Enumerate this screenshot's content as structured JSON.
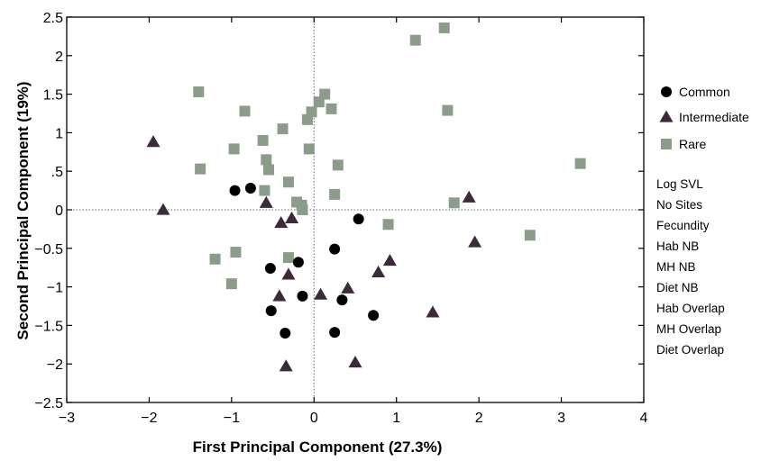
{
  "chart_data": {
    "type": "scatter",
    "title": "",
    "xlabel": "First Principal Component (27.3%)",
    "ylabel": "Second Principal Component (19%)",
    "xlim": [
      -3,
      4
    ],
    "ylim": [
      -2.5,
      2.5
    ],
    "x_ticks": [
      {
        "value": -3,
        "label": "−3"
      },
      {
        "value": -2,
        "label": "−2"
      },
      {
        "value": -1,
        "label": "−1"
      },
      {
        "value": 0,
        "label": "0"
      },
      {
        "value": 1,
        "label": "1"
      },
      {
        "value": 2,
        "label": "2"
      },
      {
        "value": 3,
        "label": "3"
      },
      {
        "value": 4,
        "label": "4"
      }
    ],
    "y_ticks": [
      {
        "value": 2.5,
        "label": "2.5"
      },
      {
        "value": 2,
        "label": "2"
      },
      {
        "value": 1.5,
        "label": "1.5"
      },
      {
        "value": 1,
        "label": "1"
      },
      {
        "value": 0.5,
        "label": ".5"
      },
      {
        "value": 0,
        "label": "0"
      },
      {
        "value": -0.5,
        "label": "−0.5"
      },
      {
        "value": -1,
        "label": "−1"
      },
      {
        "value": -1.5,
        "label": "−1.5"
      },
      {
        "value": -2,
        "label": "−2"
      },
      {
        "value": -2.5,
        "label": "−2.5"
      }
    ],
    "reference_lines": {
      "x": 0,
      "y": 0,
      "style": "dotted"
    },
    "grid": false,
    "legend_position": "right",
    "series": [
      {
        "name": "Common",
        "marker": "circle",
        "color": "#000000",
        "points": [
          [
            -0.96,
            0.25
          ],
          [
            -0.77,
            0.28
          ],
          [
            0.54,
            -0.12
          ],
          [
            0.25,
            -0.51
          ],
          [
            -0.53,
            -0.76
          ],
          [
            -0.19,
            -0.68
          ],
          [
            -0.14,
            -1.12
          ],
          [
            -0.52,
            -1.31
          ],
          [
            0.34,
            -1.17
          ],
          [
            0.72,
            -1.37
          ],
          [
            -0.35,
            -1.6
          ],
          [
            0.25,
            -1.59
          ]
        ]
      },
      {
        "name": "Intermediate",
        "marker": "triangle",
        "color": "#3a2a3a",
        "points": [
          [
            -1.95,
            0.88
          ],
          [
            -1.83,
            0.0
          ],
          [
            -0.58,
            0.09
          ],
          [
            -0.4,
            -0.17
          ],
          [
            -0.27,
            -0.11
          ],
          [
            -0.31,
            -0.84
          ],
          [
            -0.42,
            -1.12
          ],
          [
            0.08,
            -1.1
          ],
          [
            0.41,
            -1.02
          ],
          [
            0.78,
            -0.81
          ],
          [
            0.92,
            -0.66
          ],
          [
            1.88,
            0.16
          ],
          [
            1.95,
            -0.42
          ],
          [
            1.44,
            -1.33
          ],
          [
            0.5,
            -1.98
          ],
          [
            -0.34,
            -2.03
          ]
        ]
      },
      {
        "name": "Rare",
        "marker": "square",
        "color": "#8c9c8a",
        "points": [
          [
            -1.4,
            1.53
          ],
          [
            -0.84,
            1.28
          ],
          [
            -1.38,
            0.53
          ],
          [
            -0.97,
            0.79
          ],
          [
            -0.62,
            0.9
          ],
          [
            -0.38,
            1.05
          ],
          [
            -0.58,
            0.65
          ],
          [
            -0.55,
            0.52
          ],
          [
            -0.6,
            0.25
          ],
          [
            -0.31,
            0.36
          ],
          [
            -0.06,
            0.79
          ],
          [
            -0.21,
            0.1
          ],
          [
            -0.14,
            0.0
          ],
          [
            -0.15,
            0.06
          ],
          [
            0.25,
            0.2
          ],
          [
            0.29,
            0.58
          ],
          [
            -0.03,
            1.27
          ],
          [
            -0.08,
            1.17
          ],
          [
            0.06,
            1.4
          ],
          [
            0.13,
            1.5
          ],
          [
            0.21,
            1.31
          ],
          [
            1.23,
            2.2
          ],
          [
            1.58,
            2.36
          ],
          [
            1.62,
            1.29
          ],
          [
            1.7,
            0.09
          ],
          [
            0.9,
            -0.19
          ],
          [
            2.62,
            -0.33
          ],
          [
            3.23,
            0.6
          ],
          [
            -0.31,
            -0.62
          ],
          [
            -1.2,
            -0.64
          ],
          [
            -1.0,
            -0.96
          ],
          [
            -0.95,
            -0.55
          ]
        ]
      }
    ],
    "variables_list": [
      "Log SVL",
      "No Sites",
      "Fecundity",
      "Hab NB",
      "MH NB",
      "Diet NB",
      "Hab Overlap",
      "MH Overlap",
      "Diet Overlap"
    ]
  }
}
